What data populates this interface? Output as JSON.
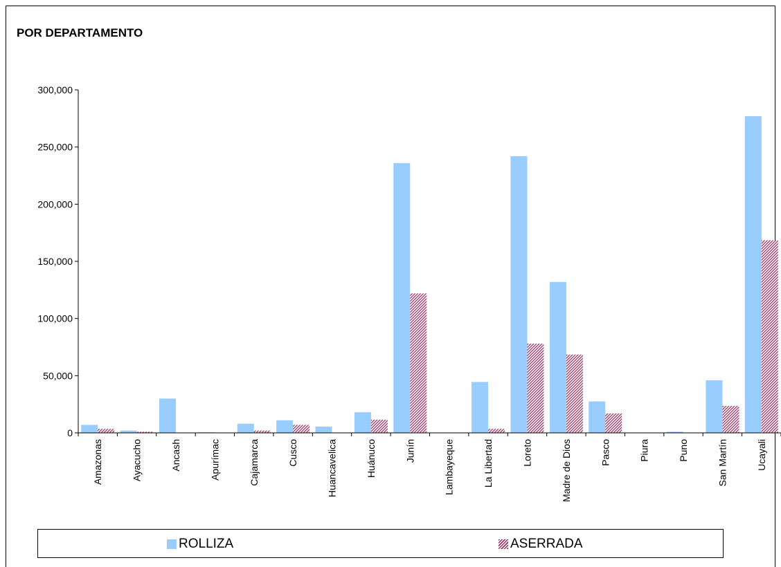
{
  "title": "POR DEPARTAMENTO",
  "colors": {
    "rolliza": "#99ccff",
    "aserrada": "#993366"
  },
  "legend": {
    "rolliza": "ROLLIZA",
    "aserrada": "ASERRADA"
  },
  "chart_data": {
    "type": "bar",
    "title": "POR DEPARTAMENTO",
    "categories": [
      "Amazonas",
      "Ayacucho",
      "Ancash",
      "Apurímac",
      "Cajamarca",
      "Cusco",
      "Huancavelica",
      "Huánuco",
      "Junín",
      "Lambayeque",
      "La Libertad",
      "Loreto",
      "Madre de Dios",
      "Pasco",
      "Piura",
      "Puno",
      "San Martín",
      "Ucayali"
    ],
    "series": [
      {
        "name": "ROLLIZA",
        "values": [
          7000,
          2000,
          30000,
          500,
          8000,
          11000,
          5500,
          18000,
          236000,
          0,
          44500,
          242000,
          132000,
          27500,
          0,
          1000,
          46000,
          277000
        ]
      },
      {
        "name": "ASERRADA",
        "values": [
          3500,
          1000,
          0,
          200,
          2000,
          7000,
          0,
          11500,
          122000,
          0,
          3500,
          78000,
          68500,
          17000,
          0,
          0,
          23500,
          168500
        ]
      }
    ],
    "ylim": [
      0,
      300000
    ],
    "yticks": [
      0,
      50000,
      100000,
      150000,
      200000,
      250000,
      300000
    ],
    "ytick_labels": [
      "0",
      "50,000",
      "100,000",
      "150,000",
      "200,000",
      "250,000",
      "300,000"
    ],
    "grid": false,
    "legend_position": "bottom"
  }
}
